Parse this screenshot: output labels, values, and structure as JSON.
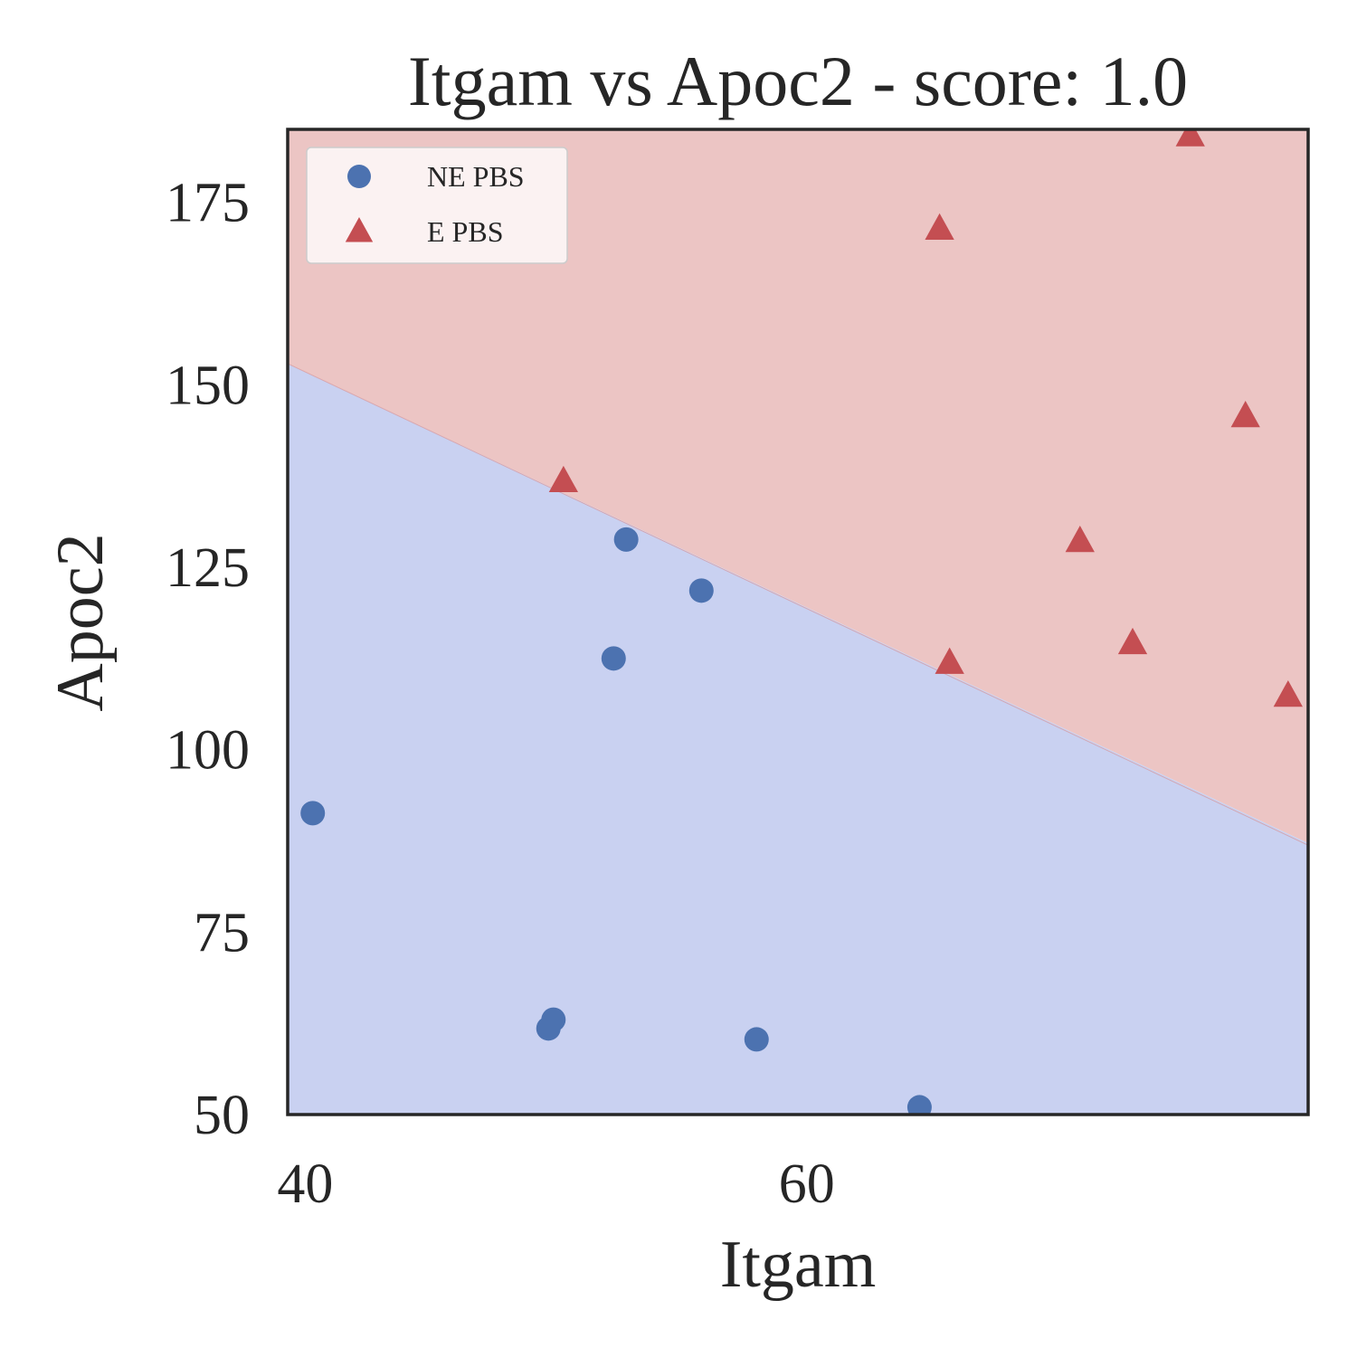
{
  "chart_data": {
    "type": "scatter",
    "title": "Itgam vs Apoc2 - score: 1.0",
    "xlabel": "Itgam",
    "ylabel": "Apoc2",
    "xlim": [
      39.3,
      80.0
    ],
    "ylim": [
      50,
      185
    ],
    "xticks": [
      40,
      60
    ],
    "yticks": [
      50,
      75,
      100,
      125,
      150,
      175
    ],
    "grid": false,
    "legend_position": "top-left",
    "decision_boundary": {
      "x": [
        39.3,
        80.0
      ],
      "y": [
        152.9,
        86.9
      ],
      "upper_region": "E PBS",
      "lower_region": "NE PBS"
    },
    "series": [
      {
        "name": "NE PBS",
        "marker": "circle",
        "color": "#4c72b0",
        "region_color": "#c9d1f1",
        "points": [
          [
            40.3,
            91.3
          ],
          [
            49.7,
            61.8
          ],
          [
            49.9,
            63.0
          ],
          [
            52.3,
            112.5
          ],
          [
            52.8,
            128.8
          ],
          [
            55.8,
            121.8
          ],
          [
            58.0,
            60.3
          ],
          [
            64.5,
            51.0
          ]
        ]
      },
      {
        "name": "E PBS",
        "marker": "triangle",
        "color": "#c44e52",
        "region_color": "#ecc5c4",
        "points": [
          [
            50.3,
            136.8
          ],
          [
            65.3,
            171.4
          ],
          [
            65.7,
            111.9
          ],
          [
            70.9,
            128.6
          ],
          [
            73.0,
            114.6
          ],
          [
            75.3,
            184.2
          ],
          [
            77.5,
            145.7
          ],
          [
            79.2,
            107.4
          ]
        ]
      }
    ]
  }
}
